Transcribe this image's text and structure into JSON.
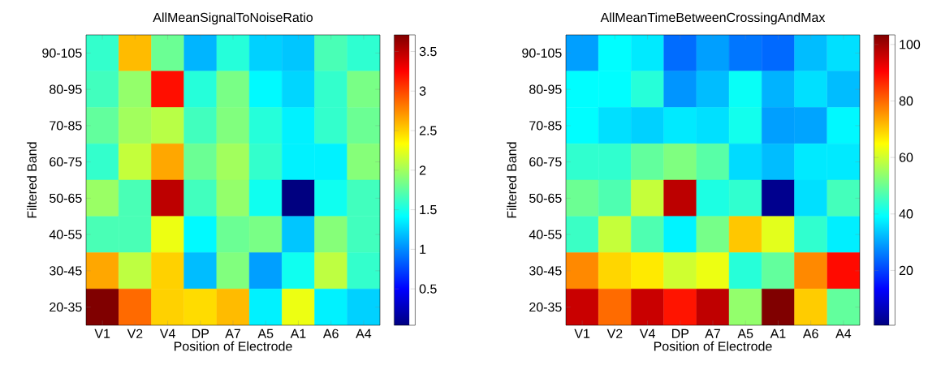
{
  "chart_data": [
    {
      "type": "heatmap",
      "title": "AllMeanSignalToNoiseRatio",
      "xlabel": "Position of Electrode",
      "ylabel": "Filtered Band",
      "categories": [
        "V1",
        "V2",
        "V4",
        "DP",
        "A7",
        "A5",
        "A1",
        "A6",
        "A4"
      ],
      "y_categories": [
        "90-105",
        "80-95",
        "70-85",
        "60-75",
        "50-65",
        "40-55",
        "30-45",
        "20-35"
      ],
      "cells": [
        [
          1.6,
          2.58,
          1.8,
          1.15,
          1.55,
          1.25,
          1.21,
          1.68,
          1.58
        ],
        [
          1.65,
          1.95,
          3.2,
          1.55,
          1.85,
          1.4,
          1.27,
          1.6,
          1.85
        ],
        [
          1.77,
          2.0,
          2.08,
          1.65,
          1.88,
          1.55,
          1.37,
          1.6,
          1.8
        ],
        [
          1.6,
          2.12,
          2.65,
          1.8,
          2.0,
          1.6,
          1.37,
          1.37,
          1.9
        ],
        [
          1.97,
          1.68,
          3.49,
          1.65,
          1.95,
          1.47,
          0.04,
          1.47,
          1.65
        ],
        [
          1.68,
          1.68,
          2.27,
          1.4,
          1.8,
          1.85,
          1.21,
          1.9,
          1.65
        ],
        [
          2.65,
          2.1,
          2.5,
          1.18,
          1.88,
          1.07,
          1.47,
          2.1,
          1.6
        ],
        [
          3.71,
          2.87,
          2.5,
          2.46,
          2.58,
          1.37,
          2.27,
          1.37,
          1.25
        ]
      ],
      "clim": [
        0.04,
        3.71
      ],
      "cticks": [
        0.5,
        1,
        1.5,
        2,
        2.5,
        3,
        3.5
      ]
    },
    {
      "type": "heatmap",
      "title": "AllMeanTimeBetweenCrossingAndMax",
      "xlabel": "Position of Electrode",
      "ylabel": "Filtered Band",
      "categories": [
        "V1",
        "V2",
        "V4",
        "DP",
        "A7",
        "A5",
        "A1",
        "A6",
        "A4"
      ],
      "y_categories": [
        "90-105",
        "80-95",
        "70-85",
        "60-75",
        "50-65",
        "40-55",
        "30-45",
        "20-35"
      ],
      "cells": [
        [
          29.5,
          39,
          37,
          24.3,
          29.5,
          25.3,
          24,
          32.5,
          36
        ],
        [
          39,
          39,
          43,
          28.5,
          32.5,
          40,
          31.5,
          36,
          32.5
        ],
        [
          39,
          36,
          34.5,
          37,
          36,
          41,
          29.5,
          30,
          38.5
        ],
        [
          44,
          44,
          49,
          52,
          48,
          35.5,
          32.5,
          37,
          37
        ],
        [
          50,
          47,
          59,
          97.3,
          42,
          44,
          2,
          36,
          46
        ],
        [
          45,
          59,
          47,
          38,
          51,
          70.5,
          62,
          44,
          37.5
        ],
        [
          76.7,
          69,
          67,
          60,
          63,
          43,
          49,
          76.7,
          89.5
        ],
        [
          96,
          79.8,
          96,
          88.5,
          97,
          54,
          103.4,
          70,
          49
        ]
      ],
      "clim": [
        0.6,
        103.4
      ],
      "cticks": [
        20,
        40,
        60,
        80,
        100
      ]
    }
  ]
}
